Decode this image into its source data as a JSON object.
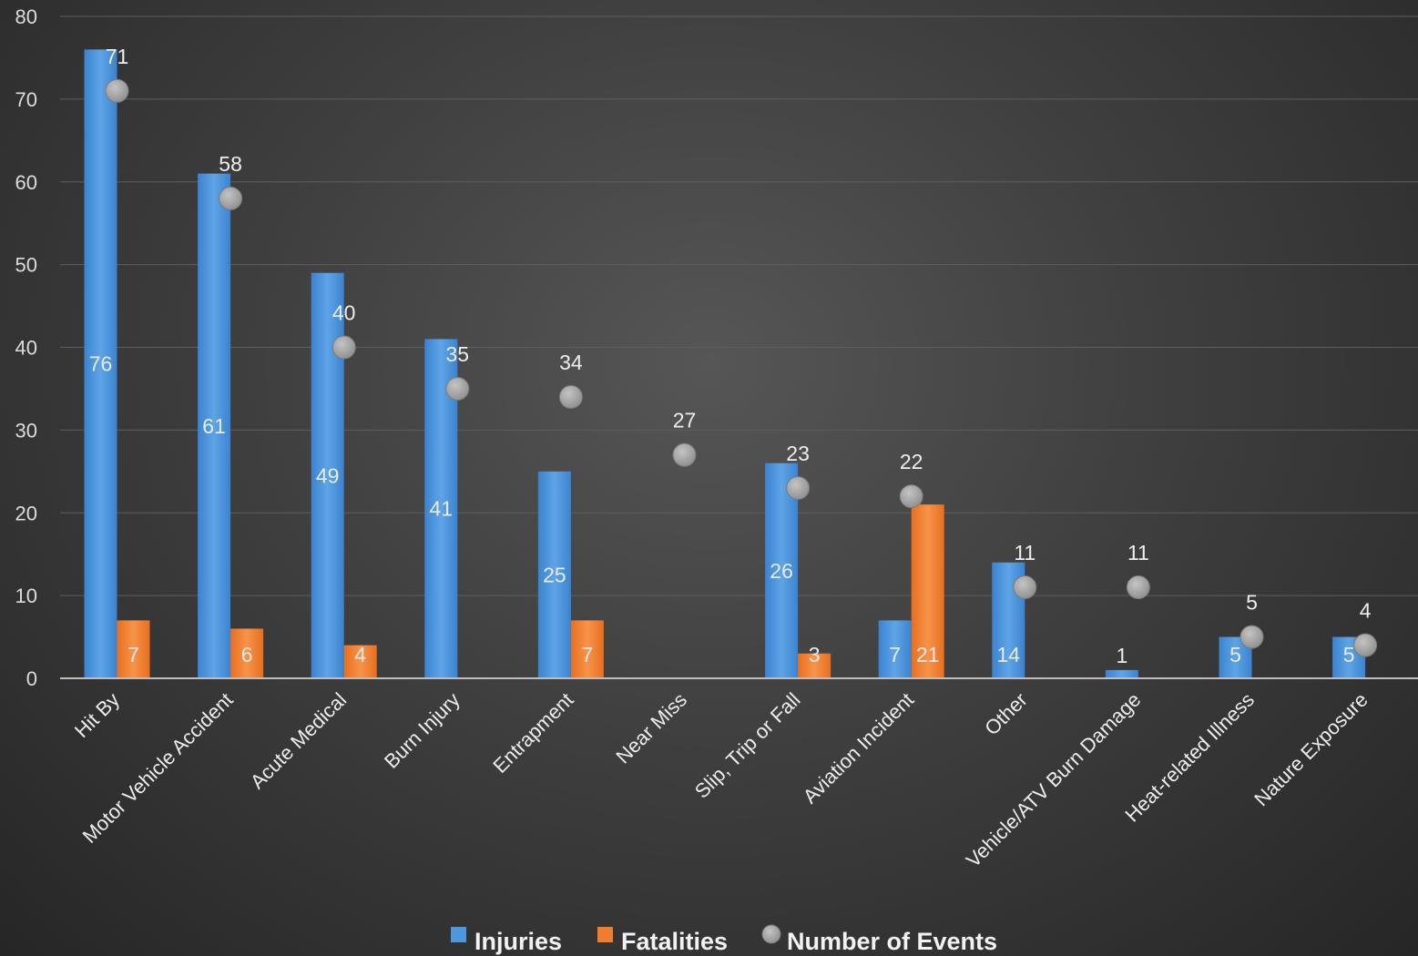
{
  "chart_data": {
    "type": "bar",
    "categories": [
      "Hit By",
      "Motor Vehicle Accident",
      "Acute Medical",
      "Burn Injury",
      "Entrapment",
      "Near Miss",
      "Slip, Trip or Fall",
      "Aviation Incident",
      "Other",
      "Vehicle/ATV Burn Damage",
      "Heat-related Illness",
      "Nature Exposure"
    ],
    "series": [
      {
        "name": "Injuries",
        "kind": "bar",
        "color": "#4e96dd",
        "values": [
          76,
          61,
          49,
          41,
          25,
          0,
          26,
          7,
          14,
          1,
          5,
          5
        ]
      },
      {
        "name": "Fatalities",
        "kind": "bar",
        "color": "#f07d2e",
        "values": [
          7,
          6,
          4,
          0,
          7,
          0,
          3,
          21,
          0,
          0,
          0,
          0
        ]
      },
      {
        "name": "Number of Events",
        "kind": "scatter",
        "color": "#a3a3a3",
        "values": [
          71,
          58,
          40,
          35,
          34,
          27,
          23,
          22,
          11,
          11,
          5,
          4
        ]
      }
    ],
    "ylim": [
      0,
      80
    ],
    "yticks": [
      0,
      10,
      20,
      30,
      40,
      50,
      60,
      70,
      80
    ],
    "grid": true,
    "legend_position": "bottom"
  }
}
